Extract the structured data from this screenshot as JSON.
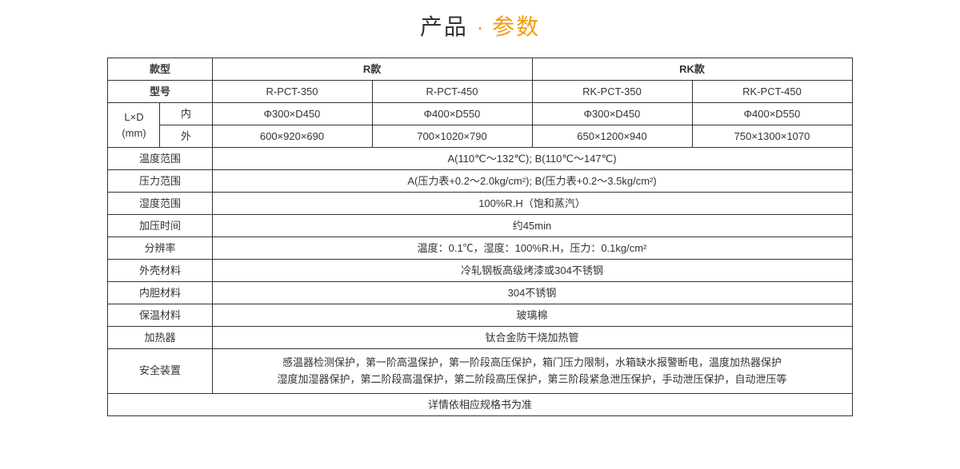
{
  "title": {
    "left": "产品",
    "dot": "·",
    "right": "参数"
  },
  "header_style_row": "款型",
  "header_styles": [
    "R款",
    "RK款"
  ],
  "header_model_row": "型号",
  "models": [
    "R-PCT-350",
    "R-PCT-450",
    "RK-PCT-350",
    "RK-PCT-450"
  ],
  "dim_group": "L×D\n(mm)",
  "dim_inner_lab": "内",
  "dim_outer_lab": "外",
  "dim_inner": [
    "Φ300×D450",
    "Φ400×D550",
    "Φ300×D450",
    "Φ400×D550"
  ],
  "dim_outer": [
    "600×920×690",
    "700×1020×790",
    "650×1200×940",
    "750×1300×1070"
  ],
  "rows": {
    "temp_range": {
      "label": "温度范围",
      "value": "A(110℃～132℃); B(110℃～147℃)"
    },
    "press_range": {
      "label": "压力范围",
      "value": "A(压力表+0.2～2.0kg/cm²); B(压力表+0.2～3.5kg/cm²)"
    },
    "humid_range": {
      "label": "湿度范围",
      "value": "100%R.H（饱和蒸汽）"
    },
    "press_time": {
      "label": "加压时间",
      "value": "约45min"
    },
    "resolution": {
      "label": "分辨率",
      "value": "温度：0.1℃，湿度：100%R.H，压力：0.1kg/cm²"
    },
    "shell_mat": {
      "label": "外壳材料",
      "value": "冷轧钢板高级烤漆或304不锈钢"
    },
    "inner_mat": {
      "label": "内胆材料",
      "value": "304不锈钢"
    },
    "insul_mat": {
      "label": "保温材料",
      "value": "玻璃棉"
    },
    "heater": {
      "label": "加热器",
      "value": "钛合金防干烧加热管"
    },
    "safety": {
      "label": "安全装置",
      "value": "感温器检测保护，第一阶高温保护，第一阶段高压保护，箱门压力限制，水箱缺水报警断电，温度加热器保护\n湿度加湿器保护，第二阶段高温保护，第二阶段高压保护，第三阶段紧急泄压保护，手动泄压保护，自动泄压等"
    }
  },
  "footer_note": "详情依相应规格书为准",
  "colors": {
    "text": "#333333",
    "accent": "#f39c12",
    "border": "#333333",
    "bg": "#ffffff"
  },
  "font_sizes": {
    "title": 28,
    "cell": 13
  }
}
